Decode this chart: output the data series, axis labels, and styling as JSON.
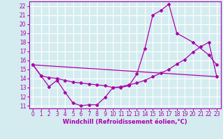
{
  "xlabel": "Windchill (Refroidissement éolien,°C)",
  "background_color": "#d4ecf0",
  "grid_color": "#ffffff",
  "line_color": "#aa00aa",
  "xlim": [
    -0.5,
    23.5
  ],
  "ylim": [
    10.7,
    22.5
  ],
  "yticks": [
    11,
    12,
    13,
    14,
    15,
    16,
    17,
    18,
    19,
    20,
    21,
    22
  ],
  "xticks": [
    0,
    1,
    2,
    3,
    4,
    5,
    6,
    7,
    8,
    9,
    10,
    11,
    12,
    13,
    14,
    15,
    16,
    17,
    18,
    19,
    20,
    21,
    22,
    23
  ],
  "curve1": {
    "x": [
      0,
      1,
      2,
      3,
      4,
      5,
      6,
      7,
      8,
      9,
      10,
      11,
      12,
      13,
      14,
      15,
      16,
      17,
      18,
      20,
      22,
      23
    ],
    "y": [
      15.5,
      14.3,
      13.1,
      13.8,
      12.5,
      11.3,
      11.0,
      11.1,
      11.1,
      11.9,
      13.0,
      13.0,
      13.2,
      14.5,
      17.3,
      21.0,
      21.5,
      22.2,
      19.0,
      18.0,
      16.6,
      15.5
    ]
  },
  "curve2": {
    "x": [
      0,
      1,
      2,
      3,
      4,
      5,
      6,
      7,
      8,
      9,
      10,
      11,
      12,
      13,
      14,
      15,
      16,
      17,
      18,
      19,
      20,
      21,
      22,
      23
    ],
    "y": [
      15.5,
      14.3,
      14.1,
      14.0,
      13.8,
      13.6,
      13.5,
      13.4,
      13.3,
      13.2,
      13.0,
      13.1,
      13.3,
      13.5,
      13.8,
      14.2,
      14.6,
      15.0,
      15.6,
      16.1,
      16.9,
      17.5,
      18.0,
      14.2
    ]
  },
  "straight_line": {
    "x": [
      0,
      23
    ],
    "y": [
      15.5,
      14.2
    ]
  },
  "tick_fontsize": 5.5,
  "xlabel_fontsize": 6.0
}
